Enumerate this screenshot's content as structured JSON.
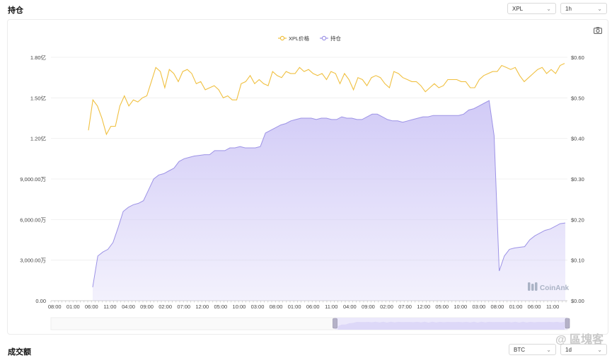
{
  "header": {
    "title": "持仓",
    "symbol_select": "XPL",
    "interval_select": "1h"
  },
  "footer": {
    "title": "成交额",
    "symbol_select": "BTC",
    "interval_select": "1d"
  },
  "watermark": {
    "brand": "CoinAnk",
    "site": "@ 區塊客"
  },
  "icons": {
    "screenshot": "camera-icon",
    "chevron": "chevron-down-icon"
  },
  "chart_data": {
    "type": "line+area",
    "legend": [
      "XPL价格",
      "持仓"
    ],
    "legend_position": "top-center",
    "colors": {
      "price": "#f0c040",
      "oi_line": "#9d93e6",
      "oi_fill": "#cfc8f6"
    },
    "x_ticks": [
      "08:00",
      "01:00",
      "06:00",
      "11:00",
      "04:00",
      "09:00",
      "02:00",
      "07:00",
      "12:00",
      "05:00",
      "10:00",
      "03:00",
      "08:00",
      "01:00",
      "06:00",
      "11:00",
      "04:00",
      "09:00",
      "02:00",
      "07:00",
      "12:00",
      "05:00",
      "10:00",
      "03:00",
      "08:00",
      "01:00",
      "06:00",
      "11:00"
    ],
    "left_axis": {
      "ticks": [
        "0.00",
        "3,000.00万",
        "6,000.00万",
        "9,000.00万",
        "1.20亿",
        "1.50亿",
        "1.80亿"
      ],
      "range": [
        0,
        180000000
      ]
    },
    "right_axis": {
      "ticks": [
        "$0.00",
        "$0.10",
        "$0.20",
        "$0.30",
        "$0.40",
        "$0.50",
        "$0.60"
      ],
      "range": [
        0,
        0.6
      ]
    },
    "grid": true,
    "series": [
      {
        "name": "XPL价格",
        "values": [
          0.42,
          0.495,
          0.48,
          0.45,
          0.41,
          0.43,
          0.43,
          0.48,
          0.505,
          0.48,
          0.495,
          0.49,
          0.5,
          0.505,
          0.54,
          0.575,
          0.565,
          0.525,
          0.57,
          0.56,
          0.54,
          0.565,
          0.57,
          0.56,
          0.535,
          0.54,
          0.52,
          0.525,
          0.53,
          0.52,
          0.5,
          0.505,
          0.495,
          0.495,
          0.535,
          0.54,
          0.555,
          0.535,
          0.545,
          0.535,
          0.53,
          0.565,
          0.555,
          0.55,
          0.565,
          0.56,
          0.56,
          0.575,
          0.565,
          0.57,
          0.56,
          0.555,
          0.56,
          0.545,
          0.565,
          0.56,
          0.535,
          0.56,
          0.545,
          0.52,
          0.55,
          0.545,
          0.53,
          0.55,
          0.555,
          0.55,
          0.535,
          0.525,
          0.565,
          0.56,
          0.55,
          0.545,
          0.54,
          0.54,
          0.53,
          0.515,
          0.525,
          0.535,
          0.525,
          0.53,
          0.545,
          0.545,
          0.545,
          0.54,
          0.54,
          0.525,
          0.525,
          0.545,
          0.555,
          0.56,
          0.565,
          0.565,
          0.58,
          0.575,
          0.57,
          0.575,
          0.555,
          0.54,
          0.55,
          0.56,
          0.57,
          0.575,
          0.56,
          0.57,
          0.56,
          0.58,
          0.585
        ]
      },
      {
        "name": "持仓",
        "values": [
          10000000,
          33000000,
          36000000,
          38000000,
          43000000,
          54000000,
          66000000,
          69000000,
          71000000,
          72000000,
          74000000,
          82000000,
          90000000,
          93000000,
          94000000,
          96000000,
          98000000,
          103000000,
          105000000,
          106000000,
          107000000,
          107500000,
          108000000,
          108000000,
          111000000,
          111000000,
          111000000,
          113000000,
          113000000,
          114000000,
          113000000,
          113000000,
          113000000,
          114000000,
          124000000,
          126000000,
          128000000,
          130000000,
          131000000,
          133000000,
          134000000,
          135000000,
          135000000,
          135000000,
          134000000,
          135000000,
          135000000,
          134000000,
          134000000,
          136000000,
          135000000,
          135000000,
          134000000,
          134000000,
          136000000,
          138000000,
          138000000,
          136000000,
          134000000,
          133000000,
          133000000,
          132000000,
          133000000,
          134000000,
          135000000,
          136000000,
          136000000,
          137000000,
          137000000,
          137000000,
          137000000,
          137000000,
          137000000,
          138000000,
          141000000,
          142000000,
          144000000,
          146000000,
          148000000,
          122000000,
          22000000,
          33000000,
          38000000,
          39000000,
          39500000,
          40000000,
          45000000,
          48000000,
          50000000,
          52000000,
          53000000,
          55000000,
          57000000,
          57500000
        ]
      }
    ],
    "series_x_start": 6,
    "navigator": {
      "range": [
        0.55,
        1.0
      ]
    }
  }
}
